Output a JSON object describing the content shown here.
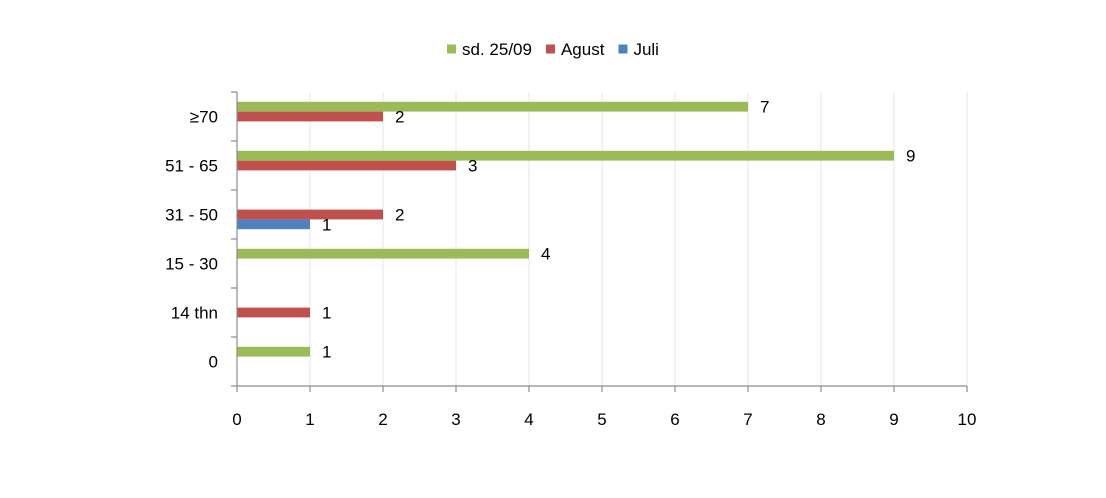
{
  "chart_data": {
    "type": "bar",
    "orientation": "horizontal",
    "categories": [
      "0",
      "14 thn",
      "15 - 30",
      "31 - 50",
      "51 - 65",
      "≥70"
    ],
    "series": [
      {
        "name": "Juli",
        "color": "#4F81BD",
        "values": [
          null,
          null,
          null,
          1,
          null,
          null
        ]
      },
      {
        "name": "Agust",
        "color": "#C0504D",
        "values": [
          null,
          1,
          null,
          2,
          3,
          2
        ]
      },
      {
        "name": "sd. 25/09",
        "color": "#9BBB59",
        "values": [
          1,
          null,
          4,
          null,
          9,
          7
        ]
      }
    ],
    "legend_order": [
      "sd. 25/09",
      "Agust",
      "Juli"
    ],
    "legend_position": "top",
    "xlim": [
      0,
      10
    ],
    "x_ticks": [
      "0",
      "1",
      "2",
      "3",
      "4",
      "5",
      "6",
      "7",
      "8",
      "9",
      "10"
    ],
    "grid": "vertical",
    "gridline_color": "#e6e6e6",
    "axis_color": "#8c8c8c",
    "data_labels": true
  }
}
